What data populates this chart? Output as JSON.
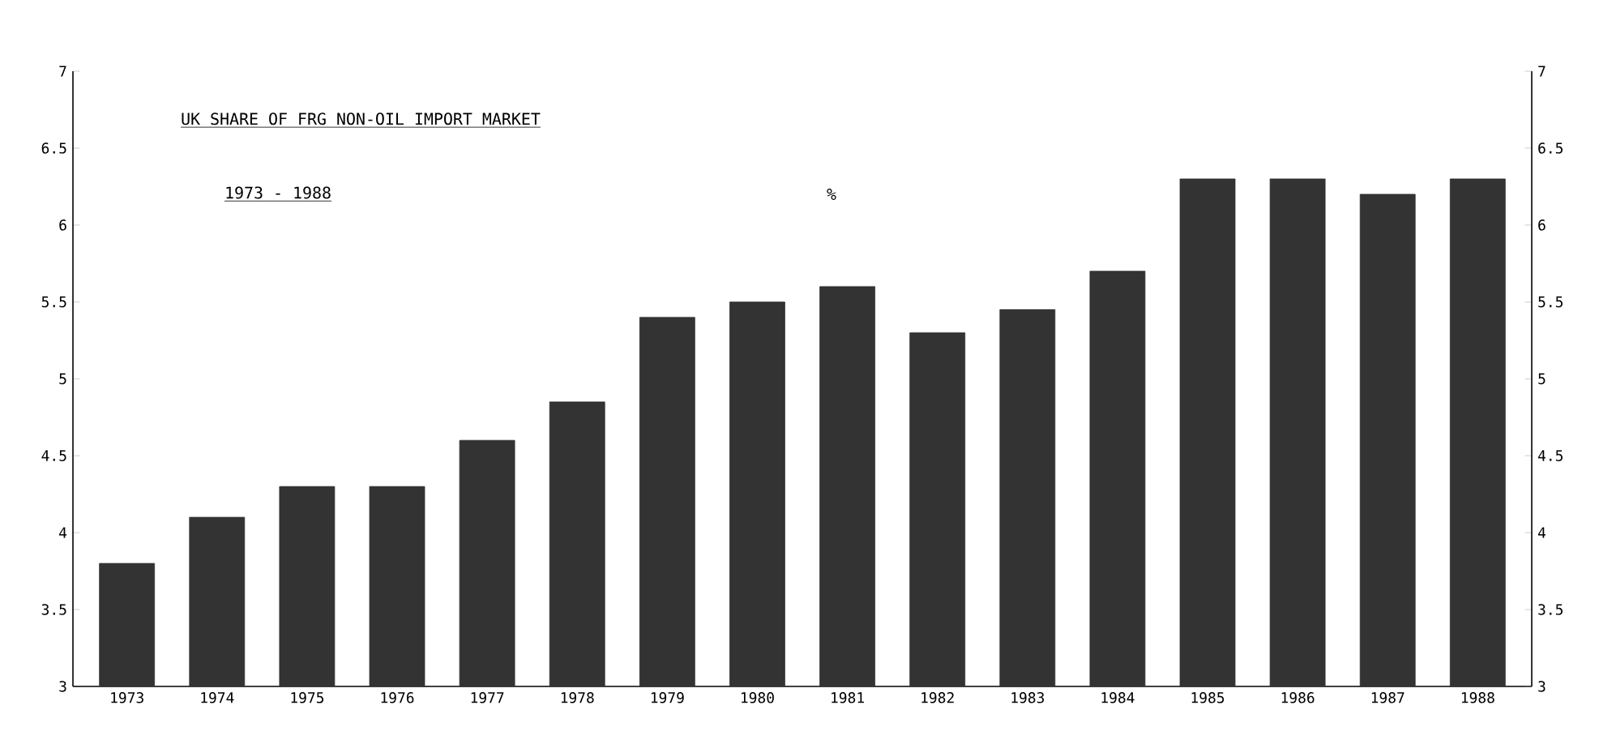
{
  "chart_data": {
    "type": "bar",
    "title": "UK SHARE OF FRG NON-OIL IMPORT MARKET",
    "subtitle": "1973 - 1988",
    "annotations": [
      "%"
    ],
    "categories": [
      "1973",
      "1974",
      "1975",
      "1976",
      "1977",
      "1978",
      "1979",
      "1980",
      "1981",
      "1982",
      "1983",
      "1984",
      "1985",
      "1986",
      "1987",
      "1988"
    ],
    "values": [
      3.8,
      4.1,
      4.3,
      4.3,
      4.6,
      4.85,
      5.4,
      5.5,
      5.6,
      5.3,
      5.45,
      5.7,
      6.3,
      6.3,
      6.2,
      6.3
    ],
    "color": "#333333",
    "ylim": [
      3,
      7
    ],
    "yticks": [
      3,
      3.5,
      4,
      4.5,
      5,
      5.5,
      6,
      6.5,
      7
    ],
    "y2lim": [
      3,
      7
    ],
    "y2ticks": [
      3,
      3.5,
      4,
      4.5,
      5,
      5.5,
      6,
      6.5,
      7
    ],
    "grid": false
  }
}
